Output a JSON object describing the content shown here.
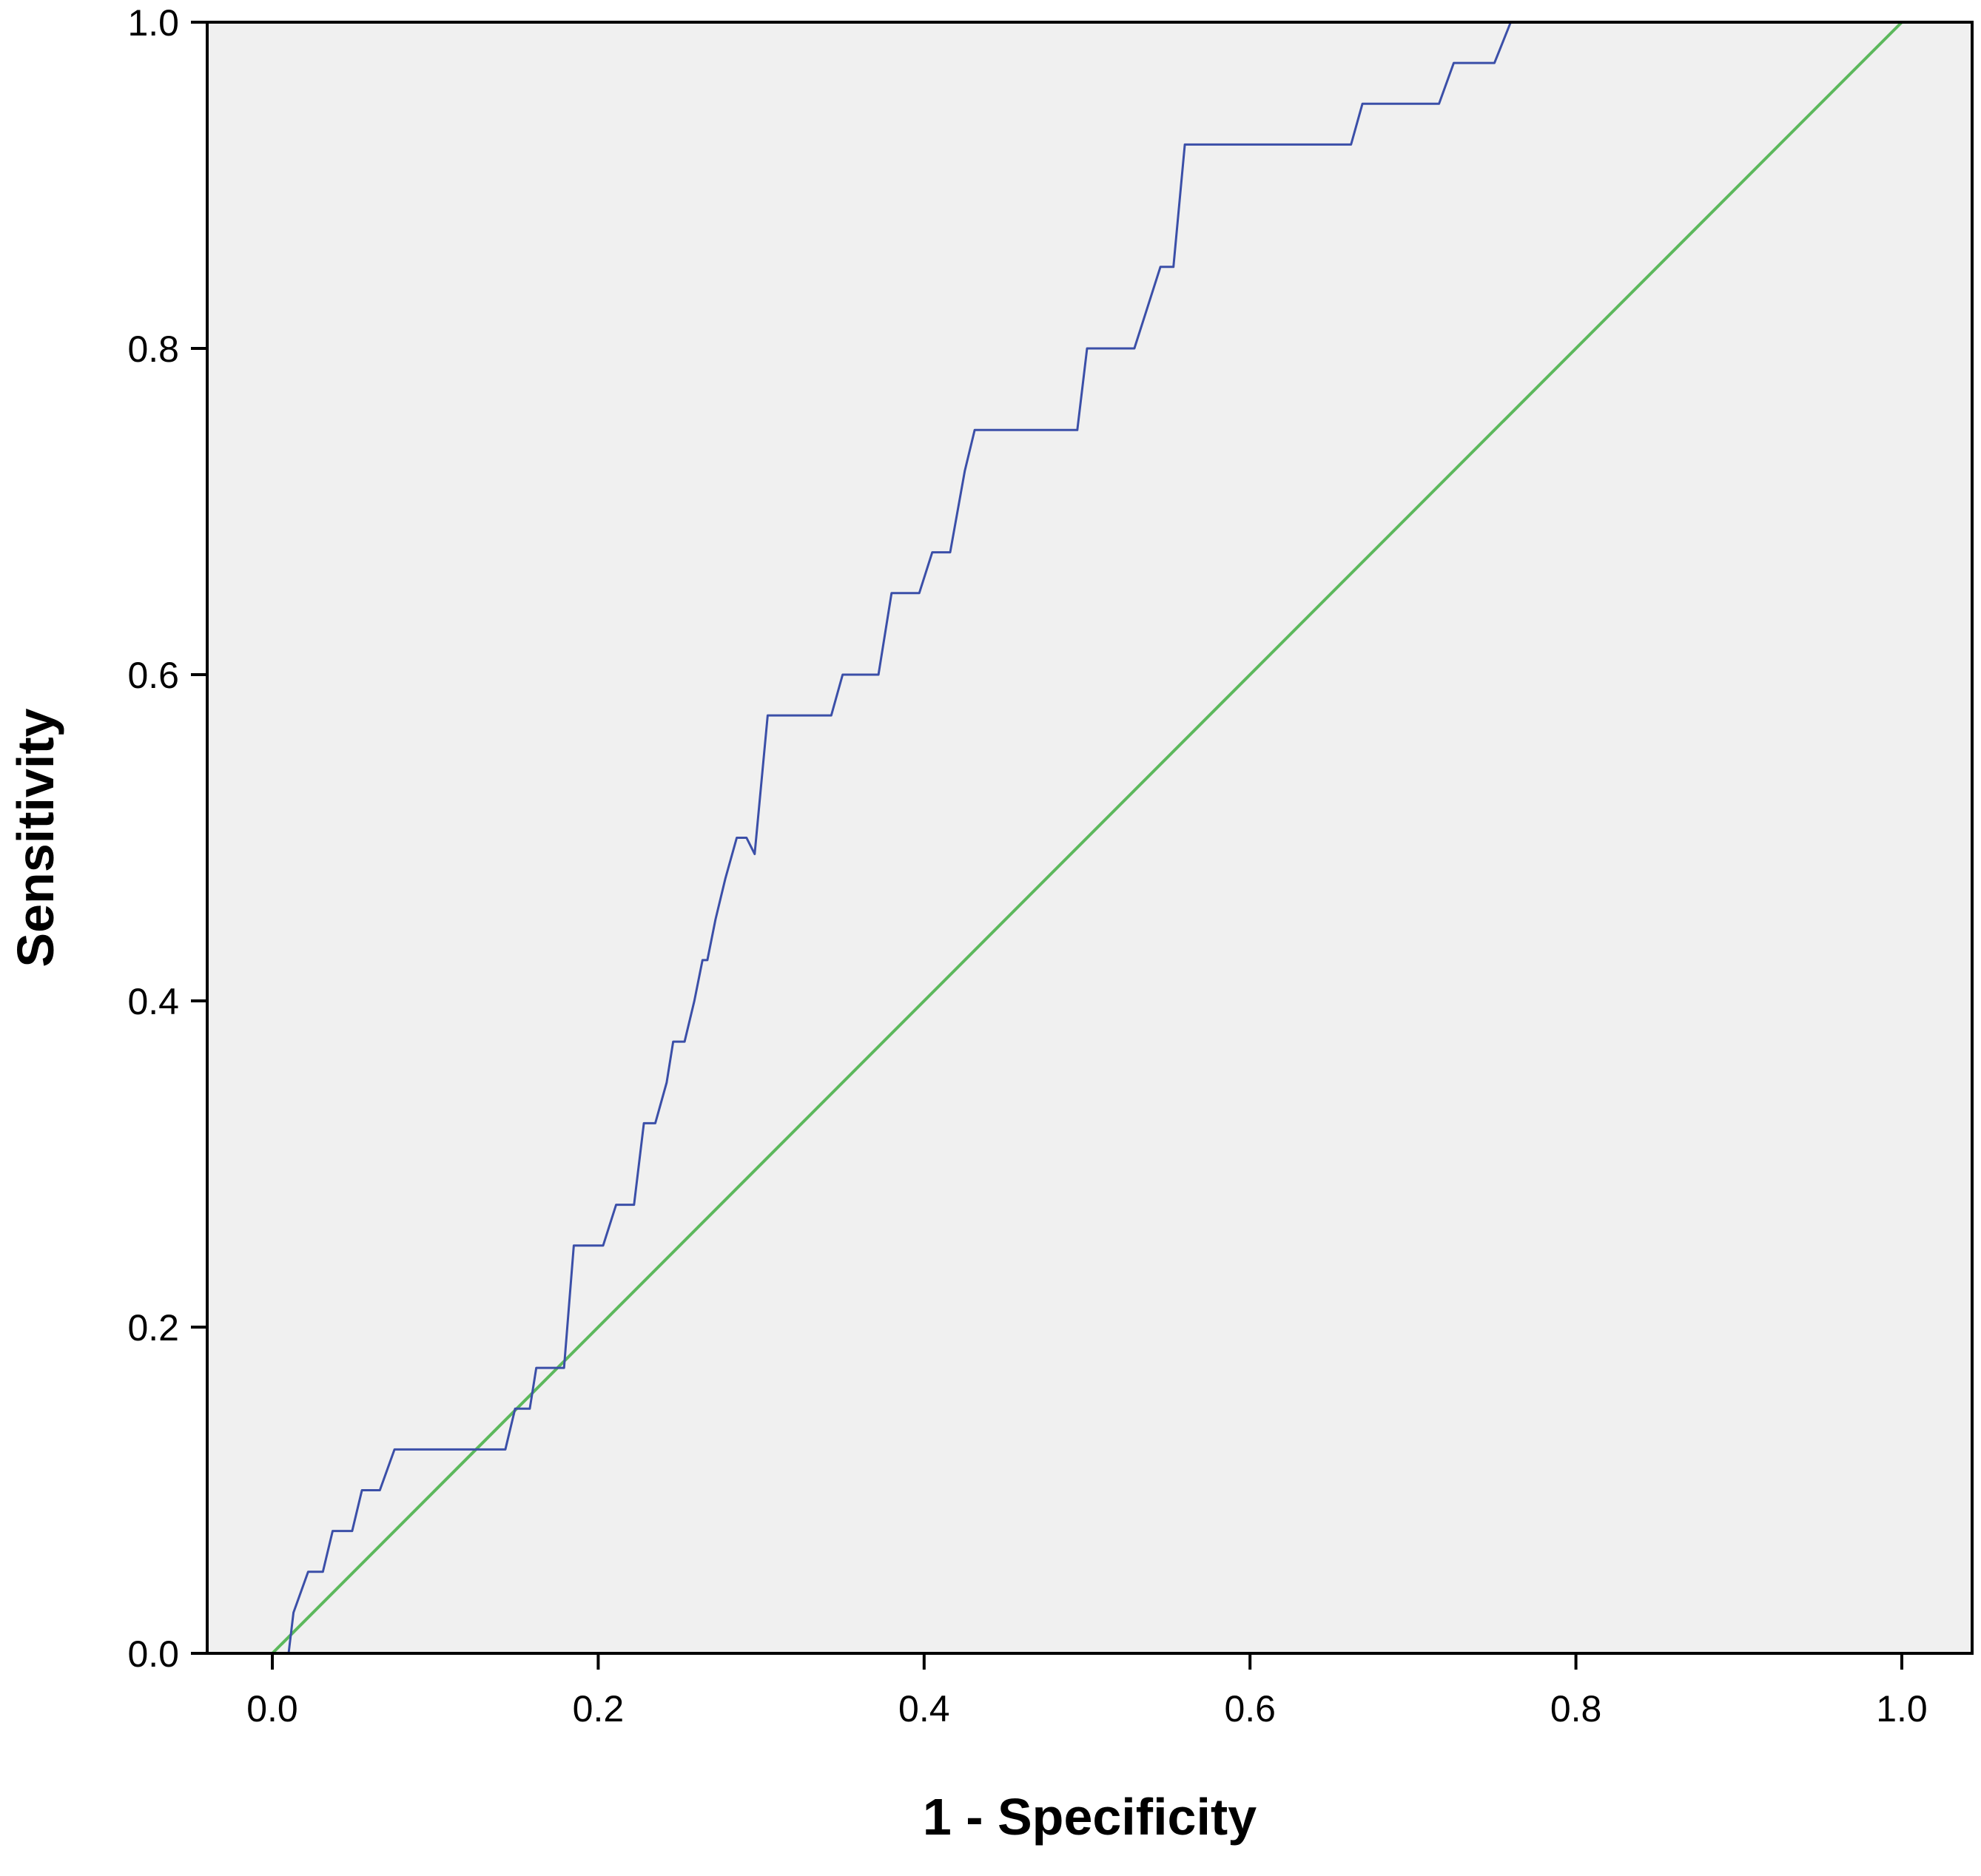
{
  "chart_data": {
    "type": "line",
    "title": "",
    "xlabel": "1 - Specificity",
    "ylabel": "Sensitivity",
    "xlim": [
      0.0,
      1.0
    ],
    "ylim": [
      0.0,
      1.0
    ],
    "x_ticks": [
      "0.0",
      "0.2",
      "0.4",
      "0.6",
      "0.8",
      "1.0"
    ],
    "y_ticks": [
      "0.0",
      "0.2",
      "0.4",
      "0.6",
      "0.8",
      "1.0"
    ],
    "grid": false,
    "legend": "none",
    "colors": {
      "plot_background": "#f0f0f0",
      "roc_curve": "#3b4fa8",
      "reference_line": "#5cb85c",
      "frame": "#000000"
    },
    "series": [
      {
        "values": [
          [
            0.01,
            0.0
          ],
          [
            0.013,
            0.025
          ],
          [
            0.022,
            0.05
          ],
          [
            0.031,
            0.05
          ],
          [
            0.037,
            0.075
          ],
          [
            0.049,
            0.075
          ],
          [
            0.055,
            0.1
          ],
          [
            0.066,
            0.1
          ],
          [
            0.075,
            0.125
          ],
          [
            0.143,
            0.125
          ],
          [
            0.149,
            0.15
          ],
          [
            0.158,
            0.15
          ],
          [
            0.162,
            0.175
          ],
          [
            0.179,
            0.175
          ],
          [
            0.185,
            0.25
          ],
          [
            0.203,
            0.25
          ],
          [
            0.211,
            0.275
          ],
          [
            0.222,
            0.275
          ],
          [
            0.228,
            0.325
          ],
          [
            0.235,
            0.325
          ],
          [
            0.242,
            0.35
          ],
          [
            0.246,
            0.375
          ],
          [
            0.253,
            0.375
          ],
          [
            0.259,
            0.4
          ],
          [
            0.264,
            0.425
          ],
          [
            0.267,
            0.425
          ],
          [
            0.272,
            0.45
          ],
          [
            0.278,
            0.475
          ],
          [
            0.285,
            0.5
          ],
          [
            0.291,
            0.5
          ],
          [
            0.296,
            0.49
          ],
          [
            0.304,
            0.575
          ],
          [
            0.343,
            0.575
          ],
          [
            0.35,
            0.6
          ],
          [
            0.372,
            0.6
          ],
          [
            0.38,
            0.65
          ],
          [
            0.397,
            0.65
          ],
          [
            0.405,
            0.675
          ],
          [
            0.416,
            0.675
          ],
          [
            0.425,
            0.725
          ],
          [
            0.431,
            0.75
          ],
          [
            0.494,
            0.75
          ],
          [
            0.5,
            0.8
          ],
          [
            0.529,
            0.8
          ],
          [
            0.537,
            0.825
          ],
          [
            0.545,
            0.85
          ],
          [
            0.553,
            0.85
          ],
          [
            0.56,
            0.925
          ],
          [
            0.662,
            0.925
          ],
          [
            0.669,
            0.95
          ],
          [
            0.716,
            0.95
          ],
          [
            0.725,
            0.975
          ],
          [
            0.75,
            0.975
          ],
          [
            0.76,
            1.0
          ],
          [
            1.0,
            1.0
          ]
        ]
      },
      {
        "values": [
          [
            0.0,
            0.0
          ],
          [
            1.0,
            1.0
          ]
        ]
      }
    ]
  }
}
